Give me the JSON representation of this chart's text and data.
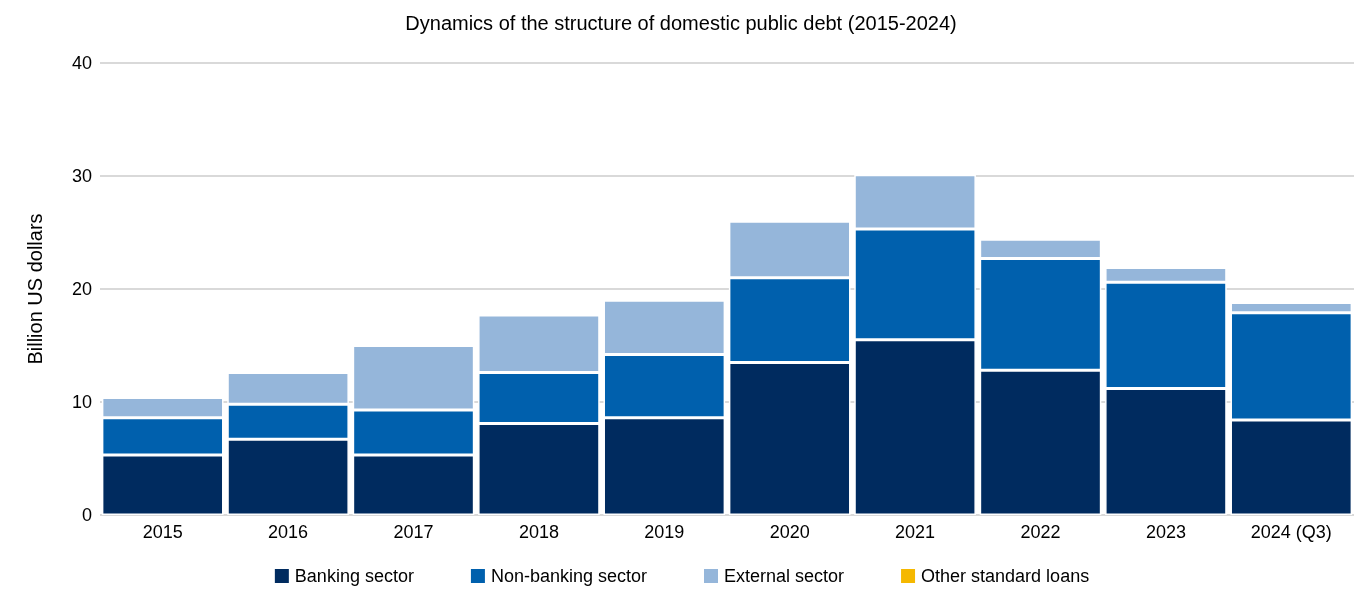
{
  "chart_data": {
    "type": "bar",
    "title": "Dynamics of the structure of domestic public debt (2015-2024)",
    "ylabel": "Billion US dollars",
    "categories": [
      "2015",
      "2016",
      "2017",
      "2018",
      "2019",
      "2020",
      "2021",
      "2022",
      "2023",
      "2024 (Q3)"
    ],
    "stacked": true,
    "ylim": [
      0,
      40
    ],
    "yticks": [
      0,
      10,
      20,
      30,
      40
    ],
    "grid": "y",
    "legend": "bottom",
    "series": [
      {
        "name": "Banking sector",
        "color": "#002b5f",
        "values": [
          5.3,
          6.7,
          5.3,
          8.1,
          8.6,
          13.5,
          15.5,
          12.8,
          11.2,
          8.4
        ]
      },
      {
        "name": "Non-banking sector",
        "color": "#0060ad",
        "values": [
          3.3,
          3.1,
          4.0,
          4.5,
          5.6,
          7.5,
          9.8,
          9.9,
          9.4,
          9.5
        ]
      },
      {
        "name": "External sector",
        "color": "#95b6da",
        "values": [
          1.8,
          2.8,
          5.7,
          5.1,
          4.8,
          5.0,
          4.8,
          1.7,
          1.3,
          0.9
        ]
      },
      {
        "name": "Other standard loans",
        "color": "#f5b800",
        "values": [
          null,
          null,
          null,
          null,
          null,
          null,
          null,
          null,
          null,
          null
        ]
      }
    ]
  }
}
